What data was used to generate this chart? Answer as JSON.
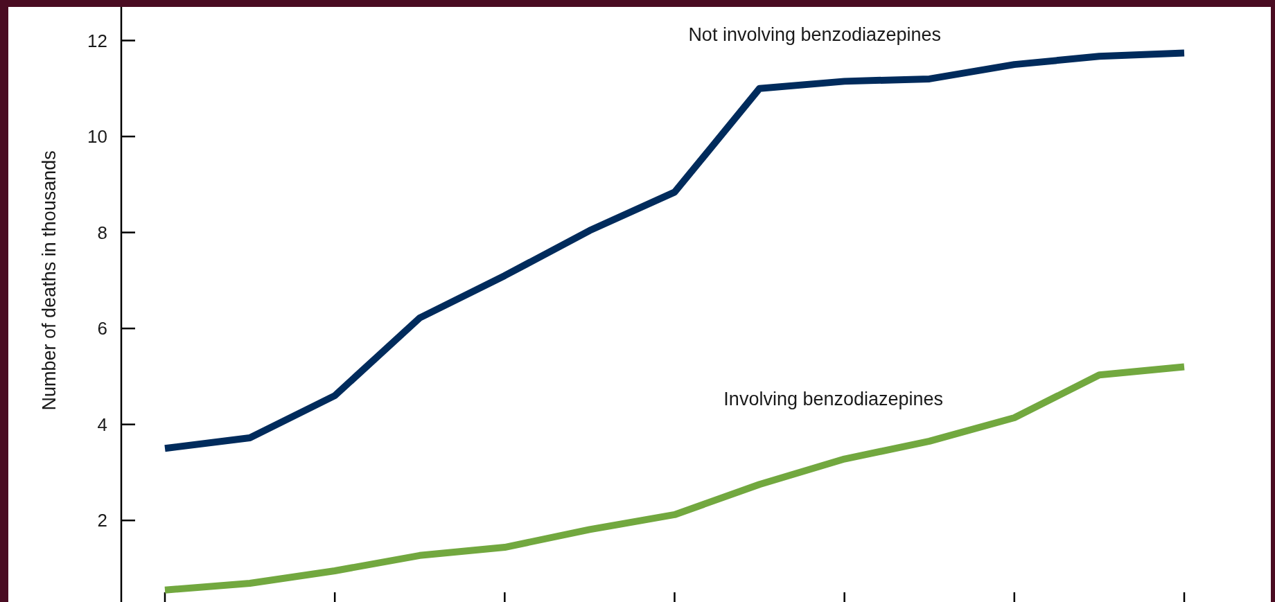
{
  "chart_data": {
    "type": "line",
    "ylabel": "Number of deaths in thousands",
    "categories": [
      null,
      null,
      null,
      null,
      null,
      null,
      null,
      null,
      null,
      null,
      null,
      null,
      null
    ],
    "ylim": [
      0.3,
      12.7
    ],
    "yticks": [
      2,
      4,
      6,
      8,
      10,
      12
    ],
    "marker": "none",
    "line_style": "solid",
    "series": [
      {
        "name": "Not involving benzodiazepines",
        "color": "#002b5c",
        "values": [
          3.5,
          3.72,
          4.6,
          6.22,
          7.1,
          8.04,
          8.84,
          11.0,
          11.15,
          11.2,
          11.5,
          11.67,
          11.74
        ]
      },
      {
        "name": "Involving benzodiazepines",
        "color": "#72a83f",
        "values": [
          0.55,
          0.69,
          0.95,
          1.27,
          1.44,
          1.81,
          2.12,
          2.75,
          3.28,
          3.65,
          4.14,
          5.03,
          5.2
        ]
      }
    ]
  }
}
